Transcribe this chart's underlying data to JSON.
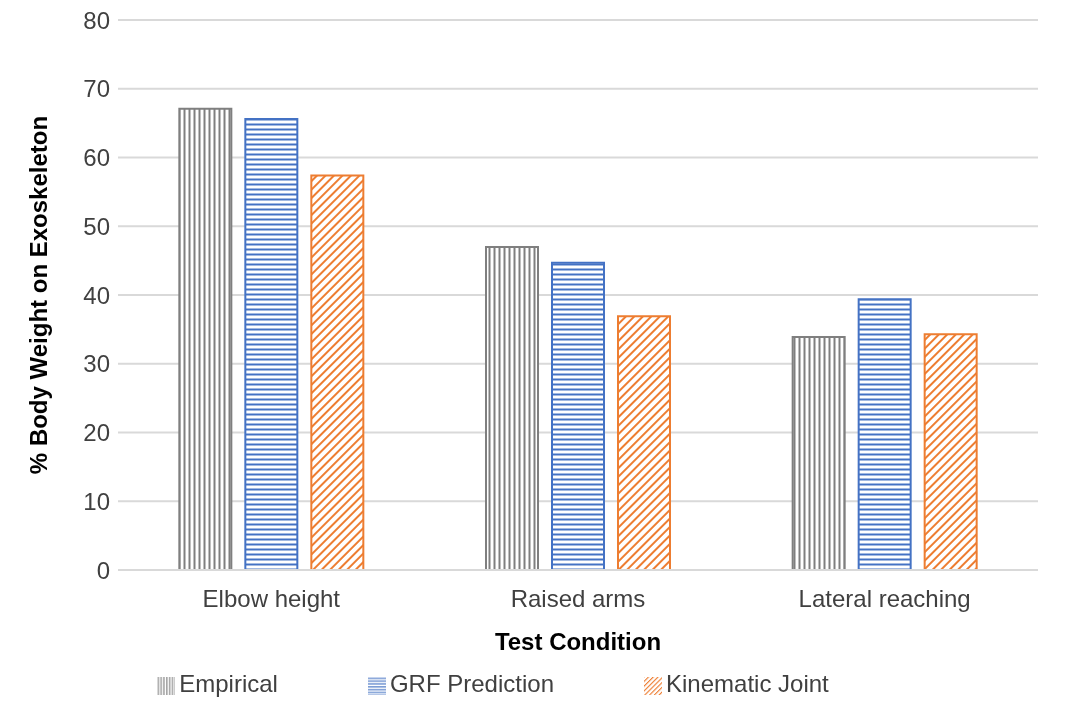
{
  "chart_data": {
    "type": "bar",
    "xlabel": "Test Condition",
    "ylabel": "% Body Weight on Exoskeleton",
    "categories": [
      "Elbow height",
      "Raised arms",
      "Lateral reaching"
    ],
    "series": [
      {
        "name": "Empirical",
        "color": "#7f7f7f",
        "values": [
          67.1,
          47.0,
          33.9
        ]
      },
      {
        "name": "GRF Prediction",
        "color": "#4472c4",
        "values": [
          65.6,
          44.7,
          39.4
        ]
      },
      {
        "name": "Kinematic Joint",
        "color": "#ed7d31",
        "values": [
          57.4,
          36.9,
          34.3
        ]
      }
    ],
    "ylim": [
      0,
      80
    ],
    "yticks": [
      0,
      10,
      20,
      30,
      40,
      50,
      60,
      70,
      80
    ],
    "grid": "y",
    "legend": "bottom"
  }
}
